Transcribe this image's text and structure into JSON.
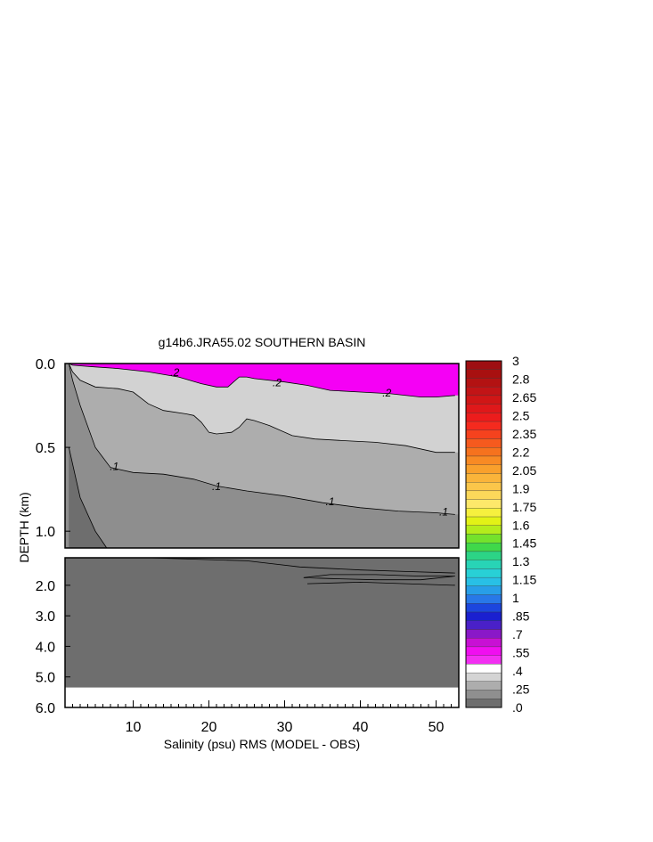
{
  "chart_data": {
    "type": "heatmap",
    "title": "g14b6.JRA55.02 SOUTHERN BASIN",
    "xlabel": "Salinity (psu) RMS (MODEL - OBS)",
    "ylabel": "DEPTH (km)",
    "x_range": [
      1,
      53
    ],
    "x_ticks": [
      10,
      20,
      30,
      40,
      50
    ],
    "upper_panel": {
      "depth_range_km": [
        0.0,
        1.1
      ],
      "y_ticks": [
        "0.0",
        "0.5",
        "1.0"
      ],
      "y_tick_values": [
        0.0,
        0.5,
        1.0
      ]
    },
    "lower_panel": {
      "depth_range_km": [
        1.1,
        6.0
      ],
      "y_ticks": [
        "2.0",
        "3.0",
        "4.0",
        "5.0",
        "6.0"
      ],
      "y_tick_values": [
        2.0,
        3.0,
        4.0,
        5.0,
        6.0
      ],
      "no_data_below_km": 5.35
    },
    "contour_labels": [
      {
        "text": ".2",
        "x": 15.5,
        "depth": 0.07
      },
      {
        "text": ".2",
        "x": 29,
        "depth": 0.13
      },
      {
        "text": ".2",
        "x": 43.5,
        "depth": 0.19
      },
      {
        "text": ".1",
        "x": 7.5,
        "depth": 0.63
      },
      {
        "text": ".1",
        "x": 21,
        "depth": 0.75
      },
      {
        "text": ".1",
        "x": 36,
        "depth": 0.84
      },
      {
        "text": ".1",
        "x": 51,
        "depth": 0.9
      }
    ],
    "contours": {
      "c025": [
        [
          1.5,
          0.0
        ],
        [
          2,
          0.01
        ],
        [
          5,
          0.02
        ],
        [
          8,
          0.03
        ],
        [
          12,
          0.05
        ],
        [
          16,
          0.08
        ],
        [
          19,
          0.12
        ],
        [
          21,
          0.14
        ],
        [
          22.5,
          0.14
        ],
        [
          24,
          0.08
        ],
        [
          25,
          0.08
        ],
        [
          26,
          0.09
        ],
        [
          30,
          0.11
        ],
        [
          33,
          0.13
        ],
        [
          36,
          0.16
        ],
        [
          40,
          0.17
        ],
        [
          44,
          0.18
        ],
        [
          48,
          0.2
        ],
        [
          50,
          0.2
        ],
        [
          52.5,
          0.19
        ]
      ],
      "c020": [
        [
          1.5,
          0.0
        ],
        [
          2,
          0.05
        ],
        [
          3,
          0.1
        ],
        [
          5,
          0.14
        ],
        [
          8,
          0.15
        ],
        [
          10,
          0.17
        ],
        [
          12,
          0.24
        ],
        [
          14,
          0.28
        ],
        [
          17,
          0.3
        ],
        [
          18,
          0.31
        ],
        [
          19,
          0.35
        ],
        [
          20,
          0.41
        ],
        [
          21,
          0.42
        ],
        [
          23,
          0.41
        ],
        [
          24,
          0.38
        ],
        [
          25,
          0.33
        ],
        [
          26,
          0.34
        ],
        [
          28,
          0.37
        ],
        [
          31,
          0.43
        ],
        [
          34,
          0.45
        ],
        [
          38,
          0.46
        ],
        [
          42,
          0.47
        ],
        [
          46,
          0.49
        ],
        [
          50,
          0.53
        ],
        [
          52.5,
          0.53
        ]
      ],
      "c010": [
        [
          1.5,
          0.0
        ],
        [
          2,
          0.1
        ],
        [
          3,
          0.25
        ],
        [
          5,
          0.5
        ],
        [
          7,
          0.62
        ],
        [
          10,
          0.65
        ],
        [
          14,
          0.66
        ],
        [
          18,
          0.69
        ],
        [
          21,
          0.73
        ],
        [
          25,
          0.76
        ],
        [
          30,
          0.79
        ],
        [
          35,
          0.83
        ],
        [
          40,
          0.86
        ],
        [
          45,
          0.88
        ],
        [
          50,
          0.89
        ],
        [
          52.5,
          0.9
        ]
      ],
      "c005": [
        [
          1.5,
          0.5
        ],
        [
          3,
          0.8
        ],
        [
          5,
          1.0
        ],
        [
          6.5,
          1.1
        ]
      ],
      "lower": [
        [
          1.5,
          1.1
        ],
        [
          12,
          1.1
        ],
        [
          25,
          1.2
        ],
        [
          32,
          1.4
        ],
        [
          40,
          1.5
        ],
        [
          46,
          1.55
        ],
        [
          52.5,
          1.6
        ]
      ],
      "lower_b": [
        [
          33,
          1.95
        ],
        [
          40,
          1.9
        ],
        [
          46,
          1.95
        ],
        [
          52.5,
          2.0
        ]
      ],
      "lens": [
        [
          32.5,
          1.75
        ],
        [
          36,
          1.65
        ],
        [
          42,
          1.65
        ],
        [
          48,
          1.7
        ],
        [
          52.5,
          1.7
        ],
        [
          48,
          1.82
        ],
        [
          42,
          1.82
        ],
        [
          36,
          1.78
        ],
        [
          32.5,
          1.75
        ]
      ]
    },
    "colorbar": {
      "labels": [
        "3",
        "2.8",
        "2.65",
        "2.5",
        "2.35",
        "2.2",
        "2.05",
        "1.9",
        "1.75",
        "1.6",
        "1.45",
        "1.3",
        "1.15",
        "1",
        ".85",
        ".7",
        ".55",
        ".4",
        ".25",
        ".0"
      ],
      "swatch_count": 40,
      "colors_top_to_bottom": [
        "#9e0e12",
        "#a81010",
        "#b31212",
        "#c21416",
        "#d01616",
        "#df181a",
        "#ec1c1c",
        "#f52a1e",
        "#f5421e",
        "#f65a1e",
        "#f6721e",
        "#f88a24",
        "#f9a02c",
        "#fab43a",
        "#fbc64a",
        "#fcd85a",
        "#fde86a",
        "#f6f03e",
        "#e2f216",
        "#b4ec1c",
        "#74e22c",
        "#40d84a",
        "#2cd486",
        "#28d4b6",
        "#28d0d6",
        "#28c0e6",
        "#289ee8",
        "#2878e8",
        "#1c46de",
        "#1a20d0",
        "#4a20c8",
        "#8a18c8",
        "#c810d4",
        "#f00ef0",
        "#f22ff2",
        "#ffffff",
        "#d4d4d4",
        "#adadad",
        "#8f8f8f",
        "#6e6e6e"
      ]
    },
    "fill_colors": {
      "gt_025": "#f500f5",
      "band_020_025": "#d2d2d2",
      "band_010_020": "#adadad",
      "band_005_010": "#8e8e8e",
      "lt_005": "#6e6e6e",
      "no_data": "#ffffff"
    }
  }
}
